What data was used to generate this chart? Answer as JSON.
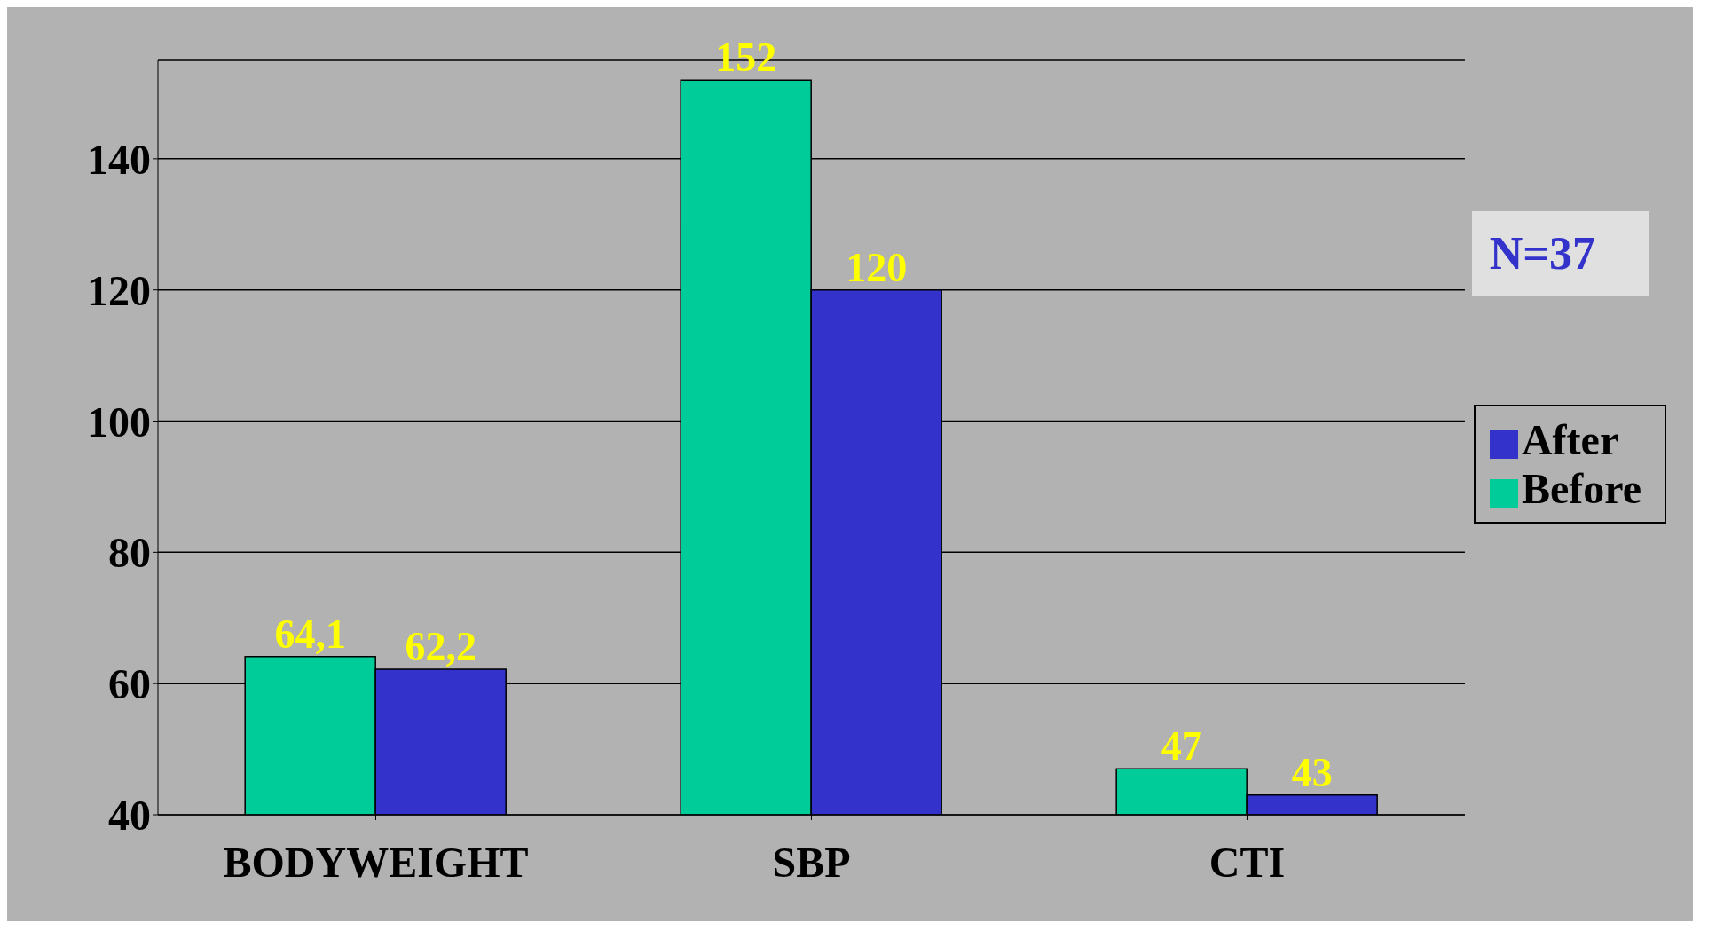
{
  "chart_data": {
    "type": "bar",
    "categories": [
      "BODYWEIGHT",
      "SBP",
      "CTI"
    ],
    "series": [
      {
        "name": "Before",
        "color": "#00cc99",
        "values": [
          64.1,
          152,
          47
        ],
        "value_labels": [
          "64,1",
          "152",
          "47"
        ]
      },
      {
        "name": "After",
        "color": "#3333cc",
        "values": [
          62.2,
          120,
          43
        ],
        "value_labels": [
          "62,2",
          "120",
          "43"
        ]
      }
    ],
    "ylim": [
      40,
      155
    ],
    "yticks": [
      40,
      60,
      80,
      100,
      120,
      140
    ],
    "grid": "y",
    "legend": "right",
    "annotations": [
      "N=37"
    ]
  }
}
